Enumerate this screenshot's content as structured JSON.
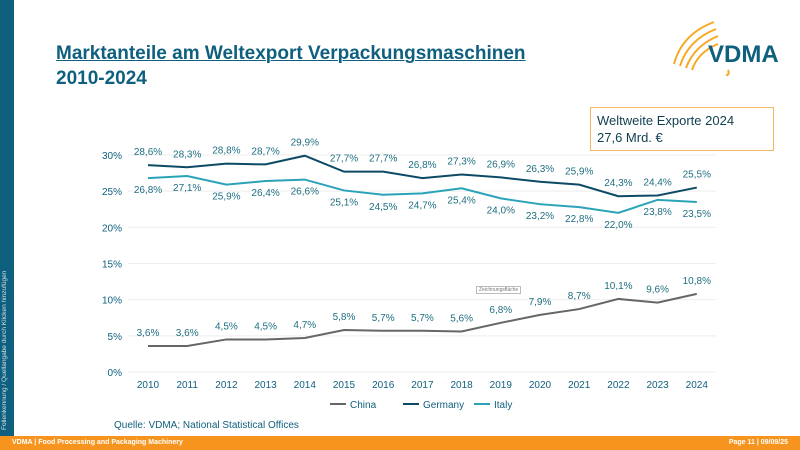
{
  "slide": {
    "title_line1": "Marktanteile am Weltexport Verpackungsmaschinen",
    "title_line2": "2010-2024",
    "logo_text": "VDMA",
    "sidebar_text": "Folienkennung / Quellangabe durch Klicken hinzufügen",
    "info_line1": "Weltweite Exporte 2024",
    "info_line2": "27,6 Mrd. €",
    "source": "Quelle: VDMA; National Statistical Offices",
    "tooltip": "Zeichnungsfläche",
    "footer_left": "VDMA | Food Processing and Packaging Machinery",
    "footer_right": "Page 11 | 09/09/25"
  },
  "colors": {
    "brand": "#0f5f7e",
    "orange": "#f7941d",
    "china": "#666666",
    "germany": "#0d4a63",
    "italy": "#2aa3b8",
    "label": "#1f6f80"
  },
  "chart_data": {
    "type": "line",
    "title": "Marktanteile am Weltexport Verpackungsmaschinen 2010-2024",
    "x": [
      "2010",
      "2011",
      "2012",
      "2013",
      "2014",
      "2015",
      "2016",
      "2017",
      "2018",
      "2019",
      "2020",
      "2021",
      "2022",
      "2023",
      "2024"
    ],
    "ylim": [
      0,
      30
    ],
    "yticks": [
      "0%",
      "5%",
      "10%",
      "15%",
      "20%",
      "25%",
      "30%"
    ],
    "ytick_values": [
      0,
      5,
      10,
      15,
      20,
      25,
      30
    ],
    "grid": true,
    "legend": "bottom",
    "series": [
      {
        "name": "China",
        "key": "china",
        "values": [
          3.6,
          3.6,
          4.5,
          4.5,
          4.7,
          5.8,
          5.7,
          5.7,
          5.6,
          6.8,
          7.9,
          8.7,
          10.1,
          9.6,
          10.8
        ],
        "labels": [
          "3,6%",
          "3,6%",
          "4,5%",
          "4,5%",
          "4,7%",
          "5,8%",
          "5,7%",
          "5,7%",
          "5,6%",
          "6,8%",
          "7,9%",
          "8,7%",
          "10,1%",
          "9,6%",
          "10,8%"
        ]
      },
      {
        "name": "Germany",
        "key": "germany",
        "values": [
          28.6,
          28.3,
          28.8,
          28.7,
          29.9,
          27.7,
          27.7,
          26.8,
          27.3,
          26.9,
          26.3,
          25.9,
          24.3,
          24.4,
          25.5
        ],
        "labels": [
          "28,6%",
          "28,3%",
          "28,8%",
          "28,7%",
          "29,9%",
          "27,7%",
          "27,7%",
          "26,8%",
          "27,3%",
          "26,9%",
          "26,3%",
          "25,9%",
          "24,3%",
          "24,4%",
          "25,5%"
        ]
      },
      {
        "name": "Italy",
        "key": "italy",
        "values": [
          26.8,
          27.1,
          25.9,
          26.4,
          26.6,
          25.1,
          24.5,
          24.7,
          25.4,
          24.0,
          23.2,
          22.8,
          22.0,
          23.8,
          23.5
        ],
        "labels": [
          "26,8%",
          "27,1%",
          "25,9%",
          "26,4%",
          "26,6%",
          "25,1%",
          "24,5%",
          "24,7%",
          "25,4%",
          "24,0%",
          "23,2%",
          "22,8%",
          "22,0%",
          "23,8%",
          "23,5%"
        ]
      }
    ]
  }
}
